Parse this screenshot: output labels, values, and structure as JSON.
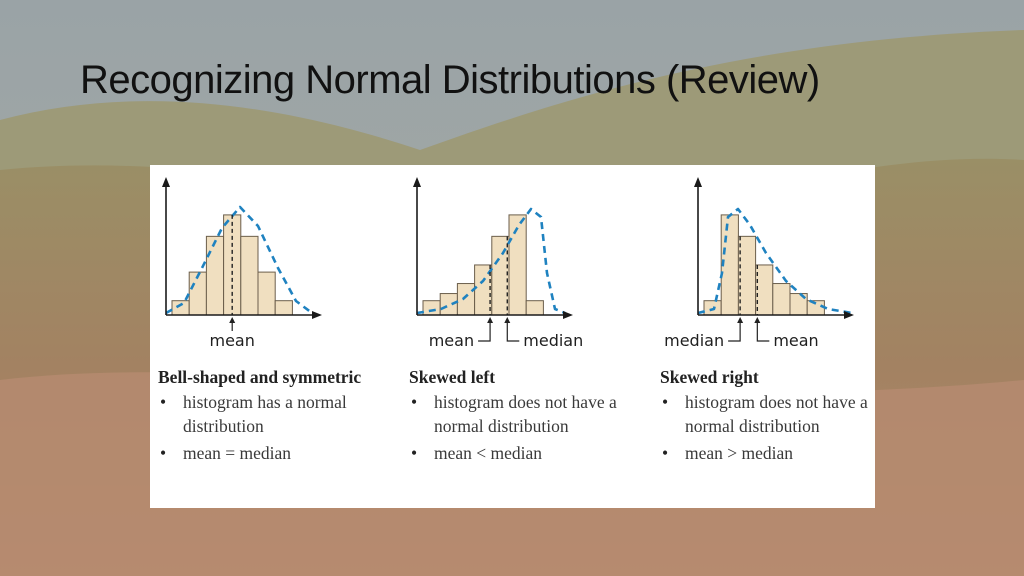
{
  "slide": {
    "title": "Recognizing Normal Distributions (Review)"
  },
  "colors": {
    "bar_fill": "#f0dfc0",
    "bar_stroke": "#6b5e4b",
    "curve": "#1f82c0",
    "axis": "#1a1a1a"
  },
  "panels": [
    {
      "heading": "Bell-shaped and symmetric",
      "bullets": [
        "histogram has a normal distribution",
        "mean = median"
      ],
      "markers": [
        "mean"
      ],
      "chart_data": {
        "type": "bar",
        "values": [
          1,
          3,
          5.5,
          7,
          5.5,
          3,
          1
        ],
        "curve": "symmetric"
      }
    },
    {
      "heading": "Skewed left",
      "bullets": [
        "histogram does not have a normal distribution",
        "mean < median"
      ],
      "markers": [
        "mean",
        "median"
      ],
      "chart_data": {
        "type": "bar",
        "values": [
          1,
          1.5,
          2.2,
          3.5,
          5.5,
          7,
          1
        ],
        "curve": "left-skewed"
      }
    },
    {
      "heading": "Skewed right",
      "bullets": [
        "histogram does not have a normal distribution",
        "mean > median"
      ],
      "markers": [
        "median",
        "mean"
      ],
      "chart_data": {
        "type": "bar",
        "values": [
          1,
          7,
          5.5,
          3.5,
          2.2,
          1.5,
          1
        ],
        "curve": "right-skewed"
      }
    }
  ]
}
